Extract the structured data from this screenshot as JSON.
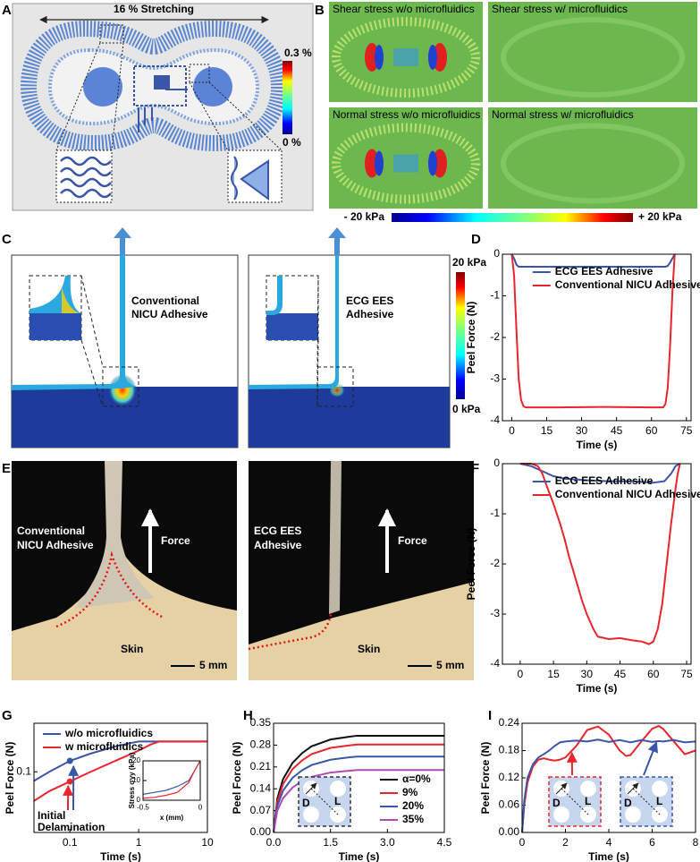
{
  "panel_labels": [
    "A",
    "B",
    "C",
    "D",
    "E",
    "F",
    "G",
    "H",
    "I"
  ],
  "panel_a": {
    "title": "16 % Stretching",
    "colorbar_max": "0.3 %",
    "colorbar_min": "0 %"
  },
  "panel_b": {
    "tiles": [
      "Shear stress w/o microfluidics",
      "Shear stress w/ microfluidics",
      "Normal stress w/o microfluidics",
      "Normal stress w/ microfluidics"
    ],
    "colorbar_min": "- 20 kPa",
    "colorbar_max": "+ 20 kPa"
  },
  "panel_c": {
    "labels": [
      [
        "Conventional",
        "NICU Adhesive"
      ],
      [
        "ECG EES",
        "Adhesive"
      ]
    ],
    "colorbar_max": "20 kPa",
    "colorbar_min": "0 kPa"
  },
  "panel_e": {
    "labels": [
      [
        "Conventional",
        "NICU Adhesive"
      ],
      [
        "ECG EES",
        "Adhesive"
      ]
    ],
    "force": "Force",
    "skin": "Skin",
    "scale": "5 mm"
  },
  "chart_data": [
    {
      "type": "line",
      "xlabel": "Time (s)",
      "ylabel": "Peel Force (N)",
      "xlim": [
        -4,
        77
      ],
      "ylim": [
        -4,
        0
      ],
      "xticks": [
        0,
        15,
        30,
        45,
        60,
        75
      ],
      "yticks": [
        0,
        -1,
        -2,
        -3,
        -4
      ],
      "legend": "upper center",
      "series": [
        {
          "name": "ECG EES Adhesive",
          "color": "#3a56a8",
          "x": [
            0,
            1,
            2,
            3,
            5,
            20,
            40,
            60,
            66,
            67,
            68,
            69,
            70
          ],
          "values": [
            0,
            -0.1,
            -0.25,
            -0.3,
            -0.3,
            -0.3,
            -0.3,
            -0.3,
            -0.3,
            -0.28,
            -0.2,
            -0.1,
            0
          ]
        },
        {
          "name": "Conventional NICU Adhesive",
          "color": "#e8262b",
          "x": [
            0,
            1,
            2,
            3,
            4,
            5,
            6,
            20,
            40,
            60,
            65,
            66,
            67,
            68,
            69,
            70
          ],
          "values": [
            0,
            -0.5,
            -1.8,
            -3.0,
            -3.5,
            -3.65,
            -3.68,
            -3.68,
            -3.67,
            -3.68,
            -3.68,
            -3.6,
            -3.2,
            -2.2,
            -0.9,
            0
          ]
        }
      ]
    },
    {
      "type": "line",
      "xlabel": "Time (s)",
      "ylabel": "Peel Force (N)",
      "xlim": [
        -8,
        77
      ],
      "ylim": [
        -4,
        0
      ],
      "xticks": [
        0,
        15,
        30,
        45,
        60,
        75
      ],
      "yticks": [
        0,
        -1,
        -2,
        -3,
        -4
      ],
      "legend": "upper center",
      "series": [
        {
          "name": "ECG EES Adhesive",
          "color": "#3a56a8",
          "x": [
            0,
            5,
            10,
            15,
            20,
            30,
            40,
            50,
            60,
            65,
            68,
            70,
            72
          ],
          "values": [
            0,
            -0.05,
            -0.15,
            -0.25,
            -0.3,
            -0.33,
            -0.35,
            -0.35,
            -0.38,
            -0.35,
            -0.2,
            -0.05,
            0
          ]
        },
        {
          "name": "Conventional NICU Adhesive",
          "color": "#e8262b",
          "x": [
            0,
            5,
            8,
            10,
            12,
            15,
            18,
            20,
            22,
            25,
            28,
            30,
            33,
            35,
            40,
            45,
            50,
            55,
            58,
            60,
            62,
            64,
            66,
            68,
            70,
            71,
            72
          ],
          "values": [
            0,
            0,
            -0.05,
            -0.2,
            -0.45,
            -0.8,
            -1.2,
            -1.5,
            -1.85,
            -2.3,
            -2.75,
            -3.0,
            -3.3,
            -3.45,
            -3.5,
            -3.48,
            -3.52,
            -3.55,
            -3.6,
            -3.55,
            -3.3,
            -2.8,
            -2.0,
            -1.2,
            -0.5,
            -0.2,
            0
          ]
        }
      ]
    },
    {
      "type": "line",
      "xscale": "log",
      "xlabel": "Time (s)",
      "ylabel": "Peel Force (N)",
      "xlim": [
        0.03,
        10
      ],
      "ylim": [
        0,
        0.18
      ],
      "xticks": [
        0.1,
        1,
        10
      ],
      "yticks": [
        0.1
      ],
      "legend": "upper left",
      "annotation": [
        "Initial",
        "Delamination"
      ],
      "series": [
        {
          "name": "w/o microfluidics",
          "color": "#3a56a8",
          "x": [
            0.03,
            0.05,
            0.1,
            0.2,
            0.5,
            1,
            1.3,
            10
          ],
          "values": [
            0.085,
            0.1,
            0.118,
            0.13,
            0.143,
            0.15,
            0.15,
            0.15
          ]
        },
        {
          "name": "w microfluidics",
          "color": "#e8262b",
          "x": [
            0.03,
            0.05,
            0.1,
            0.2,
            0.5,
            1,
            1.5,
            2,
            10
          ],
          "values": [
            0.052,
            0.068,
            0.084,
            0.1,
            0.12,
            0.135,
            0.145,
            0.15,
            0.15
          ]
        }
      ],
      "inset": {
        "type": "line",
        "xlabel": "x (mm)",
        "ylabel": "Stress σyy (kPa)",
        "xlim": [
          -0.5,
          0
        ],
        "ylim": [
          0,
          20
        ],
        "xticks": [
          -0.5,
          0
        ],
        "yticks": [
          0,
          10,
          20
        ],
        "x": [
          -0.5,
          -0.4,
          -0.3,
          -0.2,
          -0.1,
          -0.05,
          0
        ],
        "series": [
          {
            "color": "#3a56a8",
            "values": [
              3,
              4,
              5,
              7,
              10,
              15,
              20
            ]
          },
          {
            "color": "#e8262b",
            "values": [
              1,
              1.5,
              2.5,
              4,
              9,
              15,
              20
            ]
          }
        ]
      }
    },
    {
      "type": "line",
      "xlabel": "Time (s)",
      "ylabel": "Peel Force (N)",
      "xlim": [
        0,
        4.5
      ],
      "ylim": [
        0,
        0.35
      ],
      "xticks": [
        {
          "value": 0,
          "label": "0.0"
        },
        1.5,
        {
          "value": 3,
          "label": "3.0"
        },
        4.5
      ],
      "yticks": [
        {
          "value": 0,
          "label": "0.00"
        },
        0.07,
        0.14,
        0.21,
        0.28,
        0.35
      ],
      "legend": "lower right",
      "inset_labels": [
        "D",
        "L"
      ],
      "x": [
        0,
        0.1,
        0.25,
        0.5,
        0.75,
        1,
        1.5,
        2,
        2.2,
        3,
        4.5
      ],
      "series": [
        {
          "name": "α=0%",
          "color": "#111111",
          "values": [
            0,
            0.109,
            0.171,
            0.223,
            0.254,
            0.276,
            0.298,
            0.307,
            0.31,
            0.31,
            0.31
          ]
        },
        {
          "name": "9%",
          "color": "#e8262b",
          "values": [
            0,
            0.099,
            0.155,
            0.203,
            0.231,
            0.251,
            0.271,
            0.279,
            0.282,
            0.282,
            0.282
          ]
        },
        {
          "name": "20%",
          "color": "#3a56a8",
          "values": [
            0,
            0.085,
            0.134,
            0.175,
            0.199,
            0.216,
            0.233,
            0.241,
            0.243,
            0.243,
            0.243
          ]
        },
        {
          "name": "35%",
          "color": "#b04ab8",
          "values": [
            0,
            0.07,
            0.11,
            0.144,
            0.164,
            0.178,
            0.192,
            0.198,
            0.2,
            0.2,
            0.2
          ]
        }
      ]
    },
    {
      "type": "line",
      "xlabel": "Time (s)",
      "ylabel": "Peel Force (N)",
      "xlim": [
        0,
        8
      ],
      "ylim": [
        0,
        0.24
      ],
      "xticks": [
        0,
        2,
        4,
        6,
        8
      ],
      "yticks": [
        {
          "value": 0,
          "label": "0.00"
        },
        0.06,
        0.12,
        0.18,
        0.24
      ],
      "inset_labels": [
        "D",
        "L"
      ],
      "x": [
        0,
        0.1,
        0.25,
        0.5,
        0.75,
        1,
        1.25,
        1.5,
        1.75,
        2,
        2.5,
        3,
        3.5,
        4,
        4.5,
        4.8,
        5,
        5.5,
        6,
        6.3,
        6.5,
        7,
        7.5,
        8
      ],
      "series": [
        {
          "color": "#e8262b",
          "values": [
            0,
            0.06,
            0.11,
            0.145,
            0.16,
            0.163,
            0.16,
            0.158,
            0.16,
            0.165,
            0.19,
            0.225,
            0.233,
            0.215,
            0.18,
            0.168,
            0.17,
            0.2,
            0.228,
            0.234,
            0.228,
            0.2,
            0.172,
            0.18
          ]
        },
        {
          "color": "#3a56a8",
          "values": [
            0,
            0.07,
            0.12,
            0.15,
            0.165,
            0.172,
            0.18,
            0.19,
            0.198,
            0.2,
            0.202,
            0.2,
            0.204,
            0.199,
            0.203,
            0.2,
            0.198,
            0.203,
            0.199,
            0.201,
            0.2,
            0.203,
            0.198,
            0.2
          ]
        }
      ]
    }
  ]
}
